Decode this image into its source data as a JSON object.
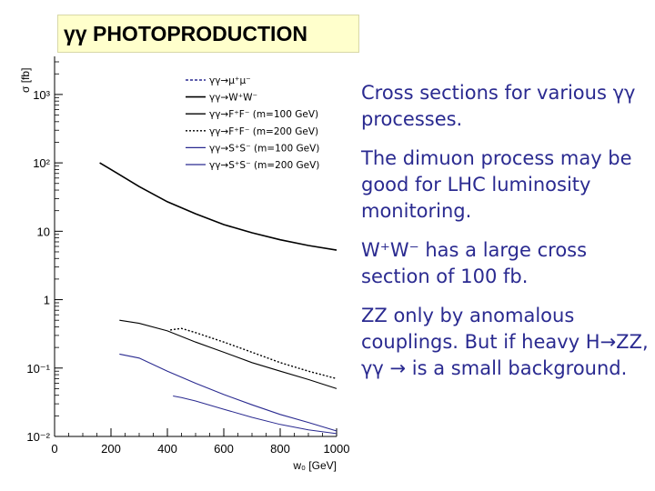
{
  "page_title": "γγ PHOTOPRODUCTION",
  "notes": [
    "Cross sections for various γγ processes.",
    "The dimuon process may be good for LHC luminosity monitoring.",
    "W⁺W⁻ has a large cross section of 100 fb.",
    "ZZ only by anomalous couplings.  But if heavy H→ZZ,  γγ → is a small background."
  ],
  "chart_data": {
    "type": "line",
    "title": "",
    "xlabel": "w₀ [GeV]",
    "ylabel": "σ [fb]",
    "xlim": [
      0,
      1000
    ],
    "ylim": [
      0.01,
      3000
    ],
    "y_scale": "log",
    "x_ticks": [
      "0",
      "200",
      "400",
      "600",
      "800",
      "1000"
    ],
    "y_ticks": [
      "10⁻²",
      "10⁻¹",
      "1",
      "10",
      "10²",
      "10³"
    ],
    "legend_position": "top-center",
    "series": [
      {
        "name": "γγ→μ⁺μ⁻",
        "color": "#2a2a90",
        "dash": "3,2",
        "width": 1.4,
        "x": [],
        "y": []
      },
      {
        "name": "γγ→W⁺W⁻",
        "color": "#000000",
        "dash": "",
        "width": 1.6,
        "x": [
          160,
          200,
          300,
          400,
          500,
          600,
          700,
          800,
          900,
          1000
        ],
        "y": [
          100,
          80,
          45,
          27,
          18,
          12.5,
          9.5,
          7.5,
          6.2,
          5.3
        ]
      },
      {
        "name": "γγ→F⁺F⁻ (m=100 GeV)",
        "color": "#000000",
        "dash": "",
        "width": 1.1,
        "x": [
          230,
          300,
          400,
          500,
          600,
          700,
          800,
          900,
          1000
        ],
        "y": [
          0.5,
          0.45,
          0.35,
          0.24,
          0.17,
          0.12,
          0.09,
          0.068,
          0.05
        ]
      },
      {
        "name": "γγ→F⁺F⁻ (m=200 GeV)",
        "color": "#000000",
        "dash": "2,2",
        "width": 1.4,
        "x": [
          410,
          450,
          500,
          600,
          700,
          800,
          900,
          1000
        ],
        "y": [
          0.36,
          0.38,
          0.33,
          0.24,
          0.17,
          0.12,
          0.09,
          0.07
        ]
      },
      {
        "name": "γγ→S⁺S⁻ (m=100 GeV)",
        "color": "#2a2a90",
        "dash": "",
        "width": 1.1,
        "x": [
          230,
          300,
          400,
          500,
          600,
          700,
          800,
          900,
          1000
        ],
        "y": [
          0.16,
          0.14,
          0.09,
          0.06,
          0.041,
          0.029,
          0.021,
          0.016,
          0.012
        ]
      },
      {
        "name": "γγ→S⁺S⁻ (m=200 GeV)",
        "color": "#2a2a90",
        "dash": "",
        "width": 1.0,
        "x": [
          420,
          450,
          500,
          600,
          700,
          800,
          900,
          1000
        ],
        "y": [
          0.039,
          0.037,
          0.033,
          0.025,
          0.019,
          0.015,
          0.0125,
          0.011
        ]
      }
    ]
  }
}
